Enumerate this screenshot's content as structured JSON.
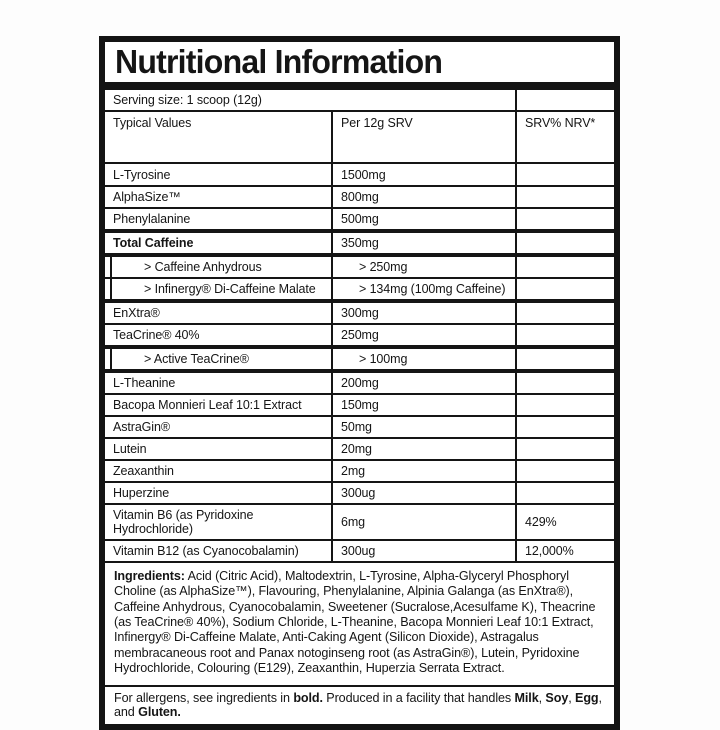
{
  "label": {
    "title": "Nutritional Information",
    "serving_size": "Serving size: 1 scoop (12g)"
  },
  "table": {
    "columns": {
      "c1": "Typical Values",
      "c2": "Per 12g SRV",
      "c3": "SRV% NRV*"
    },
    "rows": [
      {
        "name": "L-Tyrosine",
        "amount": "1500mg",
        "nrv": "",
        "bold": false,
        "sub": false
      },
      {
        "name": "AlphaSize™",
        "amount": "800mg",
        "nrv": "",
        "bold": false,
        "sub": false
      },
      {
        "name": "Phenylalanine",
        "amount": "500mg",
        "nrv": "",
        "bold": false,
        "sub": false
      },
      {
        "name": "Total Caffeine",
        "amount": "350mg",
        "nrv": "",
        "bold": true,
        "sub": false
      },
      {
        "name": "> Caffeine Anhydrous",
        "amount": "> 250mg",
        "nrv": "",
        "bold": false,
        "sub": true
      },
      {
        "name": "> Infinergy® Di-Caffeine Malate",
        "amount": "> 134mg (100mg Caffeine)",
        "nrv": "",
        "bold": false,
        "sub": true
      },
      {
        "name": "EnXtra®",
        "amount": "300mg",
        "nrv": "",
        "bold": false,
        "sub": false
      },
      {
        "name": "TeaCrine® 40%",
        "amount": "250mg",
        "nrv": "",
        "bold": false,
        "sub": false
      },
      {
        "name": "> Active TeaCrine®",
        "amount": "> 100mg",
        "nrv": "",
        "bold": false,
        "sub": true
      },
      {
        "name": "L-Theanine",
        "amount": "200mg",
        "nrv": "",
        "bold": false,
        "sub": false
      },
      {
        "name": "Bacopa Monnieri Leaf 10:1 Extract",
        "amount": "150mg",
        "nrv": "",
        "bold": false,
        "sub": false
      },
      {
        "name": "AstraGin®",
        "amount": "50mg",
        "nrv": "",
        "bold": false,
        "sub": false
      },
      {
        "name": "Lutein",
        "amount": "20mg",
        "nrv": "",
        "bold": false,
        "sub": false
      },
      {
        "name": "Zeaxanthin",
        "amount": "2mg",
        "nrv": "",
        "bold": false,
        "sub": false
      },
      {
        "name": "Huperzine",
        "amount": "300ug",
        "nrv": "",
        "bold": false,
        "sub": false
      },
      {
        "name": "Vitamin B6 (as Pyridoxine Hydrochloride)",
        "amount": "6mg",
        "nrv": "429%",
        "bold": false,
        "sub": false
      },
      {
        "name": "Vitamin B12 (as Cyanocobalamin)",
        "amount": "300ug",
        "nrv": "12,000%",
        "bold": false,
        "sub": false
      }
    ]
  },
  "ingredients": {
    "label": "Ingredients:",
    "text": " Acid (Citric Acid), Maltodextrin, L-Tyrosine, Alpha-Glyceryl Phosphoryl Choline (as AlphaSize™), Flavouring, Phenylalanine, Alpinia Galanga (as EnXtra®), Caffeine Anhydrous, Cyanocobalamin, Sweetener (Sucralose,Acesulfame K), Theacrine (as TeaCrine® 40%), Sodium Chloride, L-Theanine, Bacopa Monnieri Leaf 10:1 Extract, Infinergy® Di-Caffeine Malate, Anti-Caking Agent (Silicon Dioxide), Astragalus membracaneous root and Panax notoginseng root (as AstraGin®), Lutein, Pyridoxine Hydrochloride, Colouring (E129), Zeaxanthin, Huperzia Serrata Extract."
  },
  "allergens": {
    "segments": [
      {
        "text": "For allergens, see ingredients in ",
        "bold": false
      },
      {
        "text": "bold.",
        "bold": true
      },
      {
        "text": " Produced in a facility that handles ",
        "bold": false
      },
      {
        "text": "Milk",
        "bold": true
      },
      {
        "text": ", ",
        "bold": false
      },
      {
        "text": "Soy",
        "bold": true
      },
      {
        "text": ", ",
        "bold": false
      },
      {
        "text": "Egg",
        "bold": true
      },
      {
        "text": ", and ",
        "bold": false
      },
      {
        "text": "Gluten.",
        "bold": true
      }
    ]
  },
  "colors": {
    "border": "#141414",
    "text": "#151515",
    "background": "#ffffff"
  }
}
